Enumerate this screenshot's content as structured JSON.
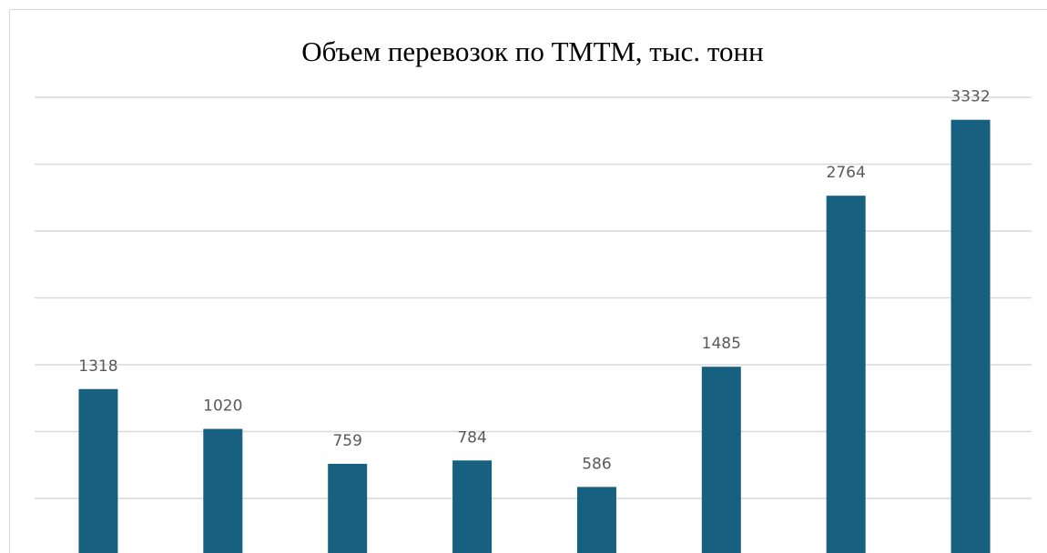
{
  "chart_data": {
    "type": "bar",
    "title": "Объем перевозок по ТМТМ, тыс. тонн",
    "values": [
      1318,
      1020,
      759,
      784,
      586,
      1485,
      2764,
      3332
    ],
    "color": "#17607f",
    "ylim": [
      0,
      3500
    ],
    "yticks": [
      500,
      1000,
      1500,
      2000,
      2500,
      3000,
      3500
    ],
    "grid": true
  }
}
